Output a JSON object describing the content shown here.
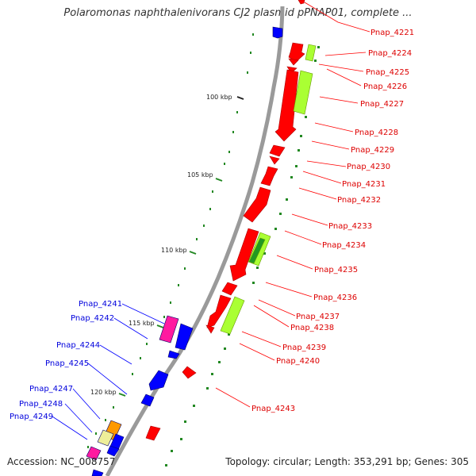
{
  "title": "Polaromonas naphthalenivorans CJ2 plasmid pPNAP01, complete ...",
  "footer": {
    "accession": "Accession: NC_008757",
    "summary": "Topology: circular; Length: 353,291 bp; Genes: 305"
  },
  "colors": {
    "red": "#ff0000",
    "blue": "#0000ff",
    "lime": "#aaff33",
    "green": "#229922",
    "magenta": "#ff1aa0",
    "orange": "#ff9900",
    "pale": "#eeee99",
    "dot": "#228822",
    "backbone": "#9a9a9a",
    "red_label": "#dd0000",
    "blue_label": "#0000dd"
  },
  "ticks": [
    {
      "label": "100 kbp"
    },
    {
      "label": "105 kbp"
    },
    {
      "label": "110 kbp"
    },
    {
      "label": "115 kbp"
    },
    {
      "label": "120 kbp"
    }
  ],
  "labels_right": [
    "Pnap_4221",
    "Pnap_4224",
    "Pnap_4225",
    "Pnap_4226",
    "Pnap_4227",
    "Pnap_4228",
    "Pnap_4229",
    "Pnap_4230",
    "Pnap_4231",
    "Pnap_4232",
    "Pnap_4233",
    "Pnap_4234",
    "Pnap_4235",
    "Pnap_4236",
    "Pnap_4237",
    "Pnap_4238",
    "Pnap_4239",
    "Pnap_4240",
    "Pnap_4243"
  ],
  "labels_left": [
    "Pnap_4241",
    "Pnap_4242",
    "Pnap_4244",
    "Pnap_4245",
    "Pnap_4247",
    "Pnap_4248",
    "Pnap_4249"
  ]
}
